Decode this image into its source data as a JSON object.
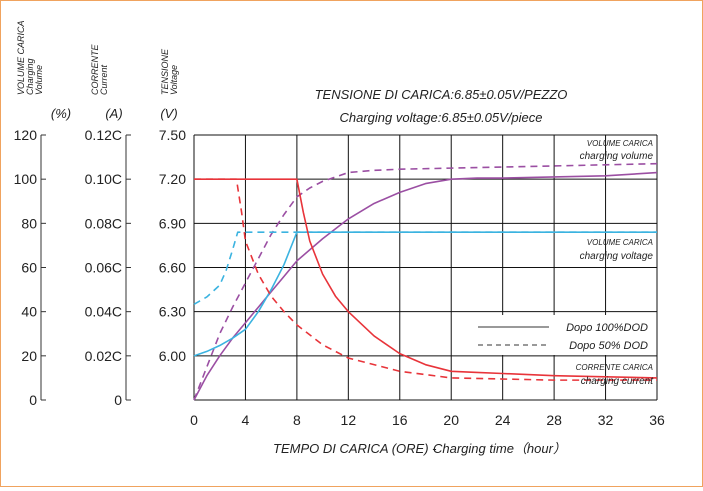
{
  "chart_data": {
    "type": "line",
    "title": "TENSIONE DI CARICA:6.85±0.05V/PEZZO",
    "subtitle": "Charging voltage:6.85±0.05V/piece",
    "xlabel_it": "TEMPO DI CARICA (ORE) -",
    "xlabel_en": "Charging time（hour）",
    "x_ticks": [
      0,
      4,
      8,
      12,
      16,
      20,
      24,
      28,
      32,
      36
    ],
    "xlim": [
      0,
      36
    ],
    "grid": true,
    "axes": {
      "volume": {
        "title_it": "VOLUME CARICA",
        "title_en1": "Charging",
        "title_en2": "Volume",
        "unit": "(%)",
        "ticks": [
          "120",
          "100",
          "80",
          "60",
          "40",
          "20",
          "0"
        ]
      },
      "current": {
        "title_it": "CORRENTE",
        "title_en": "Current",
        "unit": "(A)",
        "ticks": [
          "0.12C",
          "0.10C",
          "0.08C",
          "0.06C",
          "0.04C",
          "0.02C",
          "0"
        ]
      },
      "voltage": {
        "title_it": "TENSIONE",
        "title_en": "Voltage",
        "unit": "(V)",
        "ticks": [
          "7.50",
          "7.20",
          "6.90",
          "6.60",
          "6.30",
          "6.00"
        ],
        "ylim": [
          5.7,
          7.5
        ]
      }
    },
    "annotations": {
      "volume_it": "VOLUME CARICA",
      "volume_en": "charging volume",
      "voltage_it": "VOLUME CARICA",
      "voltage_en": "charging voltage",
      "current_it": "CORRENTE CARICA",
      "current_en": "charging current"
    },
    "legend": {
      "position": "right",
      "entries": [
        {
          "label": "Dopo 100%DOD",
          "style": "solid"
        },
        {
          "label": "Dopo  50% DOD",
          "style": "dashed"
        }
      ]
    },
    "series": [
      {
        "name": "charging volume",
        "dod": "100%",
        "color": "#9b4fa3",
        "dash": false,
        "x": [
          0,
          1,
          2,
          3,
          4,
          5,
          6,
          7,
          8,
          10,
          12,
          14,
          16,
          18,
          20,
          22,
          24,
          28,
          32,
          36
        ],
        "y": [
          0,
          11,
          20,
          28,
          35,
          42,
          49,
          56,
          63,
          73,
          82,
          89,
          94,
          98,
          100,
          100.5,
          100.5,
          101,
          101.5,
          103
        ]
      },
      {
        "name": "charging volume",
        "dod": "50%",
        "color": "#9b4fa3",
        "dash": true,
        "x": [
          0,
          1,
          2,
          3,
          4,
          5,
          6,
          7,
          8,
          9,
          10,
          12,
          14,
          16,
          20,
          24,
          28,
          32,
          36
        ],
        "y": [
          0,
          15,
          30,
          42,
          53,
          64,
          75,
          84,
          92,
          96,
          99,
          103,
          104,
          104.5,
          105,
          105.5,
          106,
          106.5,
          107
        ]
      },
      {
        "name": "charging voltage",
        "dod": "100%",
        "color": "#3bb3e0",
        "dash": false,
        "x": [
          0,
          1,
          2,
          3,
          4,
          5,
          6,
          7,
          7.5,
          8,
          12,
          16,
          20,
          24,
          28,
          32,
          36
        ],
        "y": [
          6.0,
          6.03,
          6.07,
          6.12,
          6.18,
          6.3,
          6.45,
          6.62,
          6.73,
          6.84,
          6.84,
          6.84,
          6.84,
          6.84,
          6.84,
          6.84,
          6.84
        ]
      },
      {
        "name": "charging voltage",
        "dod": "50%",
        "color": "#3bb3e0",
        "dash": true,
        "x": [
          0,
          1,
          2,
          2.5,
          3,
          3.4,
          4,
          8,
          12,
          16,
          20,
          24,
          28,
          32,
          36
        ],
        "y": [
          6.35,
          6.4,
          6.48,
          6.58,
          6.72,
          6.84,
          6.84,
          6.84,
          6.84,
          6.84,
          6.84,
          6.84,
          6.84,
          6.84,
          6.84
        ]
      },
      {
        "name": "charging current",
        "dod": "100%",
        "color": "#e8343a",
        "dash": false,
        "x": [
          0,
          8,
          8.5,
          9,
          10,
          11,
          12,
          14,
          16,
          18,
          20,
          22,
          24,
          28,
          32,
          36
        ],
        "y": [
          0.1,
          0.1,
          0.085,
          0.072,
          0.057,
          0.047,
          0.04,
          0.029,
          0.021,
          0.016,
          0.013,
          0.0125,
          0.012,
          0.011,
          0.0105,
          0.01
        ]
      },
      {
        "name": "charging current",
        "dod": "50%",
        "color": "#e8343a",
        "dash": true,
        "x": [
          0,
          3.3,
          3.7,
          4,
          5,
          6,
          7,
          8,
          10,
          12,
          16,
          20,
          24,
          28,
          32,
          36
        ],
        "y": [
          0.1,
          0.1,
          0.085,
          0.072,
          0.057,
          0.047,
          0.04,
          0.034,
          0.025,
          0.019,
          0.013,
          0.01,
          0.0095,
          0.009,
          0.009,
          0.009
        ]
      }
    ]
  }
}
